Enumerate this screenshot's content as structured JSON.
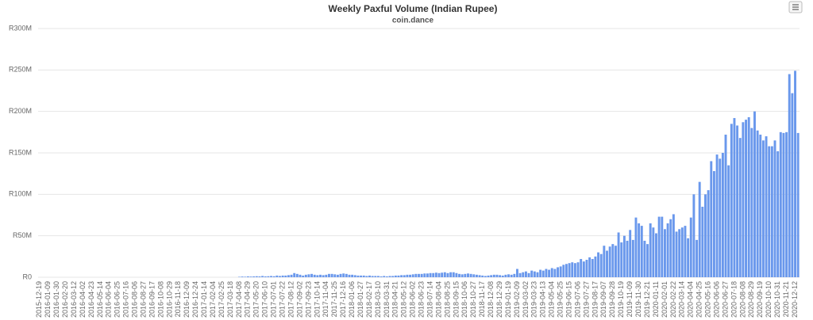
{
  "chart_data": {
    "type": "bar",
    "title": "Weekly Paxful Volume (Indian Rupee)",
    "subtitle": "coin.dance",
    "color": "#6a98ec",
    "grid": true,
    "ylim": [
      0,
      300
    ],
    "yticks": [
      {
        "value": 0,
        "label": "R0"
      },
      {
        "value": 50,
        "label": "R50M"
      },
      {
        "value": 100,
        "label": "R100M"
      },
      {
        "value": 150,
        "label": "R150M"
      },
      {
        "value": 200,
        "label": "R200M"
      },
      {
        "value": 250,
        "label": "R250M"
      },
      {
        "value": 300,
        "label": "R300M"
      }
    ],
    "categories": [
      "2015-12-19",
      null,
      null,
      "2016-01-09",
      null,
      null,
      "2016-01-30",
      null,
      null,
      "2016-02-20",
      null,
      null,
      "2016-03-12",
      null,
      null,
      "2016-04-02",
      null,
      null,
      "2016-04-23",
      null,
      null,
      "2016-05-14",
      null,
      null,
      "2016-06-04",
      null,
      null,
      "2016-06-25",
      null,
      null,
      "2016-07-16",
      null,
      null,
      "2016-08-06",
      null,
      null,
      "2016-08-27",
      null,
      null,
      "2016-09-17",
      null,
      null,
      "2016-10-08",
      null,
      null,
      "2016-10-29",
      null,
      null,
      "2016-11-18",
      null,
      null,
      "2016-12-09",
      null,
      null,
      "2016-12-24",
      null,
      null,
      "2017-01-14",
      null,
      null,
      "2017-02-04",
      null,
      null,
      "2017-02-25",
      null,
      null,
      "2017-03-18",
      null,
      null,
      "2017-04-08",
      null,
      null,
      "2017-04-29",
      null,
      null,
      "2017-05-20",
      null,
      null,
      "2017-06-10",
      null,
      null,
      "2017-07-01",
      null,
      null,
      "2017-07-22",
      null,
      null,
      "2017-08-12",
      null,
      null,
      "2017-09-02",
      null,
      null,
      "2017-09-23",
      null,
      null,
      "2017-10-14",
      null,
      null,
      "2017-11-04",
      null,
      null,
      "2017-11-25",
      null,
      null,
      "2017-12-16",
      null,
      null,
      "2018-01-06",
      null,
      null,
      "2018-01-27",
      null,
      null,
      "2018-02-17",
      null,
      null,
      "2018-03-10",
      null,
      null,
      "2018-03-31",
      null,
      null,
      "2018-04-21",
      null,
      null,
      "2018-05-12",
      null,
      null,
      "2018-06-02",
      null,
      null,
      "2018-06-23",
      null,
      null,
      "2018-07-14",
      null,
      null,
      "2018-08-04",
      null,
      null,
      "2018-08-25",
      null,
      null,
      "2018-09-15",
      null,
      null,
      "2018-10-06",
      null,
      null,
      "2018-10-27",
      null,
      null,
      "2018-11-17",
      null,
      null,
      "2018-12-08",
      null,
      null,
      "2018-12-29",
      null,
      null,
      "2019-01-19",
      null,
      null,
      "2019-02-09",
      null,
      null,
      "2019-03-02",
      null,
      null,
      "2019-03-23",
      null,
      null,
      "2019-04-13",
      null,
      null,
      "2019-05-04",
      null,
      null,
      "2019-05-25",
      null,
      null,
      "2019-06-15",
      null,
      null,
      "2019-07-06",
      null,
      null,
      "2019-07-27",
      null,
      null,
      "2019-08-17",
      null,
      null,
      "2019-09-07",
      null,
      null,
      "2019-09-28",
      null,
      null,
      "2019-10-19",
      null,
      null,
      "2019-11-09",
      null,
      null,
      "2019-11-30",
      null,
      null,
      "2019-12-21",
      null,
      null,
      "2020-01-11",
      null,
      null,
      "2020-02-01",
      null,
      null,
      "2020-02-22",
      null,
      null,
      "2020-03-14",
      null,
      null,
      "2020-04-04",
      null,
      null,
      "2020-04-25",
      null,
      null,
      "2020-05-16",
      null,
      null,
      "2020-06-06",
      null,
      null,
      "2020-06-27",
      null,
      null,
      "2020-07-18",
      null,
      null,
      "2020-08-08",
      null,
      null,
      "2020-08-29",
      null,
      null,
      "2020-09-19",
      null,
      null,
      "2020-10-10",
      null,
      null,
      "2020-10-31",
      null,
      null,
      "2020-11-21",
      null,
      null,
      "2020-12-12",
      null
    ],
    "values": [
      0,
      0,
      0,
      0,
      0,
      0,
      0,
      0,
      0,
      0,
      0,
      0,
      0,
      0,
      0,
      0,
      0,
      0,
      0,
      0,
      0,
      0,
      0,
      0,
      0,
      0,
      0,
      0,
      0,
      0,
      0,
      0,
      0,
      0,
      0,
      0,
      0,
      0,
      0,
      0,
      0,
      0,
      0,
      0,
      0,
      0,
      0,
      0,
      0,
      0,
      0,
      0,
      0,
      0,
      0,
      0,
      0,
      0,
      0,
      0,
      0,
      0,
      0,
      0,
      0,
      0,
      0,
      0,
      0,
      0.5,
      0.8,
      0.6,
      1,
      0.8,
      1,
      1.2,
      1,
      1.5,
      1,
      1.2,
      1.5,
      1.2,
      2,
      1.5,
      2,
      2,
      2.5,
      3,
      5,
      4,
      3,
      2,
      3,
      3.5,
      4,
      3,
      2.5,
      3,
      2.5,
      3,
      4,
      4,
      3.5,
      3,
      4,
      4.5,
      4,
      3,
      3,
      2.5,
      2,
      2,
      2,
      1.5,
      2,
      1.5,
      1.5,
      1.5,
      1,
      1.5,
      1,
      1.5,
      1.5,
      2,
      2,
      2.5,
      2.5,
      3,
      3,
      3.5,
      4,
      4,
      4,
      4.5,
      4.5,
      5,
      5,
      5.5,
      5,
      5.5,
      6,
      5,
      6,
      6,
      5,
      4,
      3.5,
      4,
      4.5,
      4,
      3.5,
      3,
      2.5,
      2,
      1.5,
      2,
      2.5,
      3,
      3,
      2.5,
      2,
      3,
      3.5,
      3,
      4,
      10,
      5,
      6,
      7,
      5,
      8,
      7,
      6,
      9,
      8,
      10,
      9,
      11,
      10,
      12,
      13,
      15,
      16,
      17,
      18,
      17,
      18,
      22,
      19,
      21,
      24,
      22,
      25,
      30,
      28,
      38,
      32,
      37,
      40,
      38,
      54,
      42,
      50,
      44,
      57,
      45,
      72,
      65,
      62,
      44,
      40,
      65,
      60,
      53,
      73,
      73,
      58,
      65,
      70,
      76,
      55,
      58,
      60,
      62,
      47,
      72,
      100,
      45,
      115,
      85,
      100,
      105,
      140,
      128,
      148,
      143,
      150,
      172,
      135,
      185,
      192,
      183,
      168,
      187,
      190,
      193,
      180,
      200,
      177,
      172,
      165,
      170,
      158,
      158,
      165,
      152,
      175,
      174,
      175,
      245,
      222,
      249,
      174
    ]
  }
}
